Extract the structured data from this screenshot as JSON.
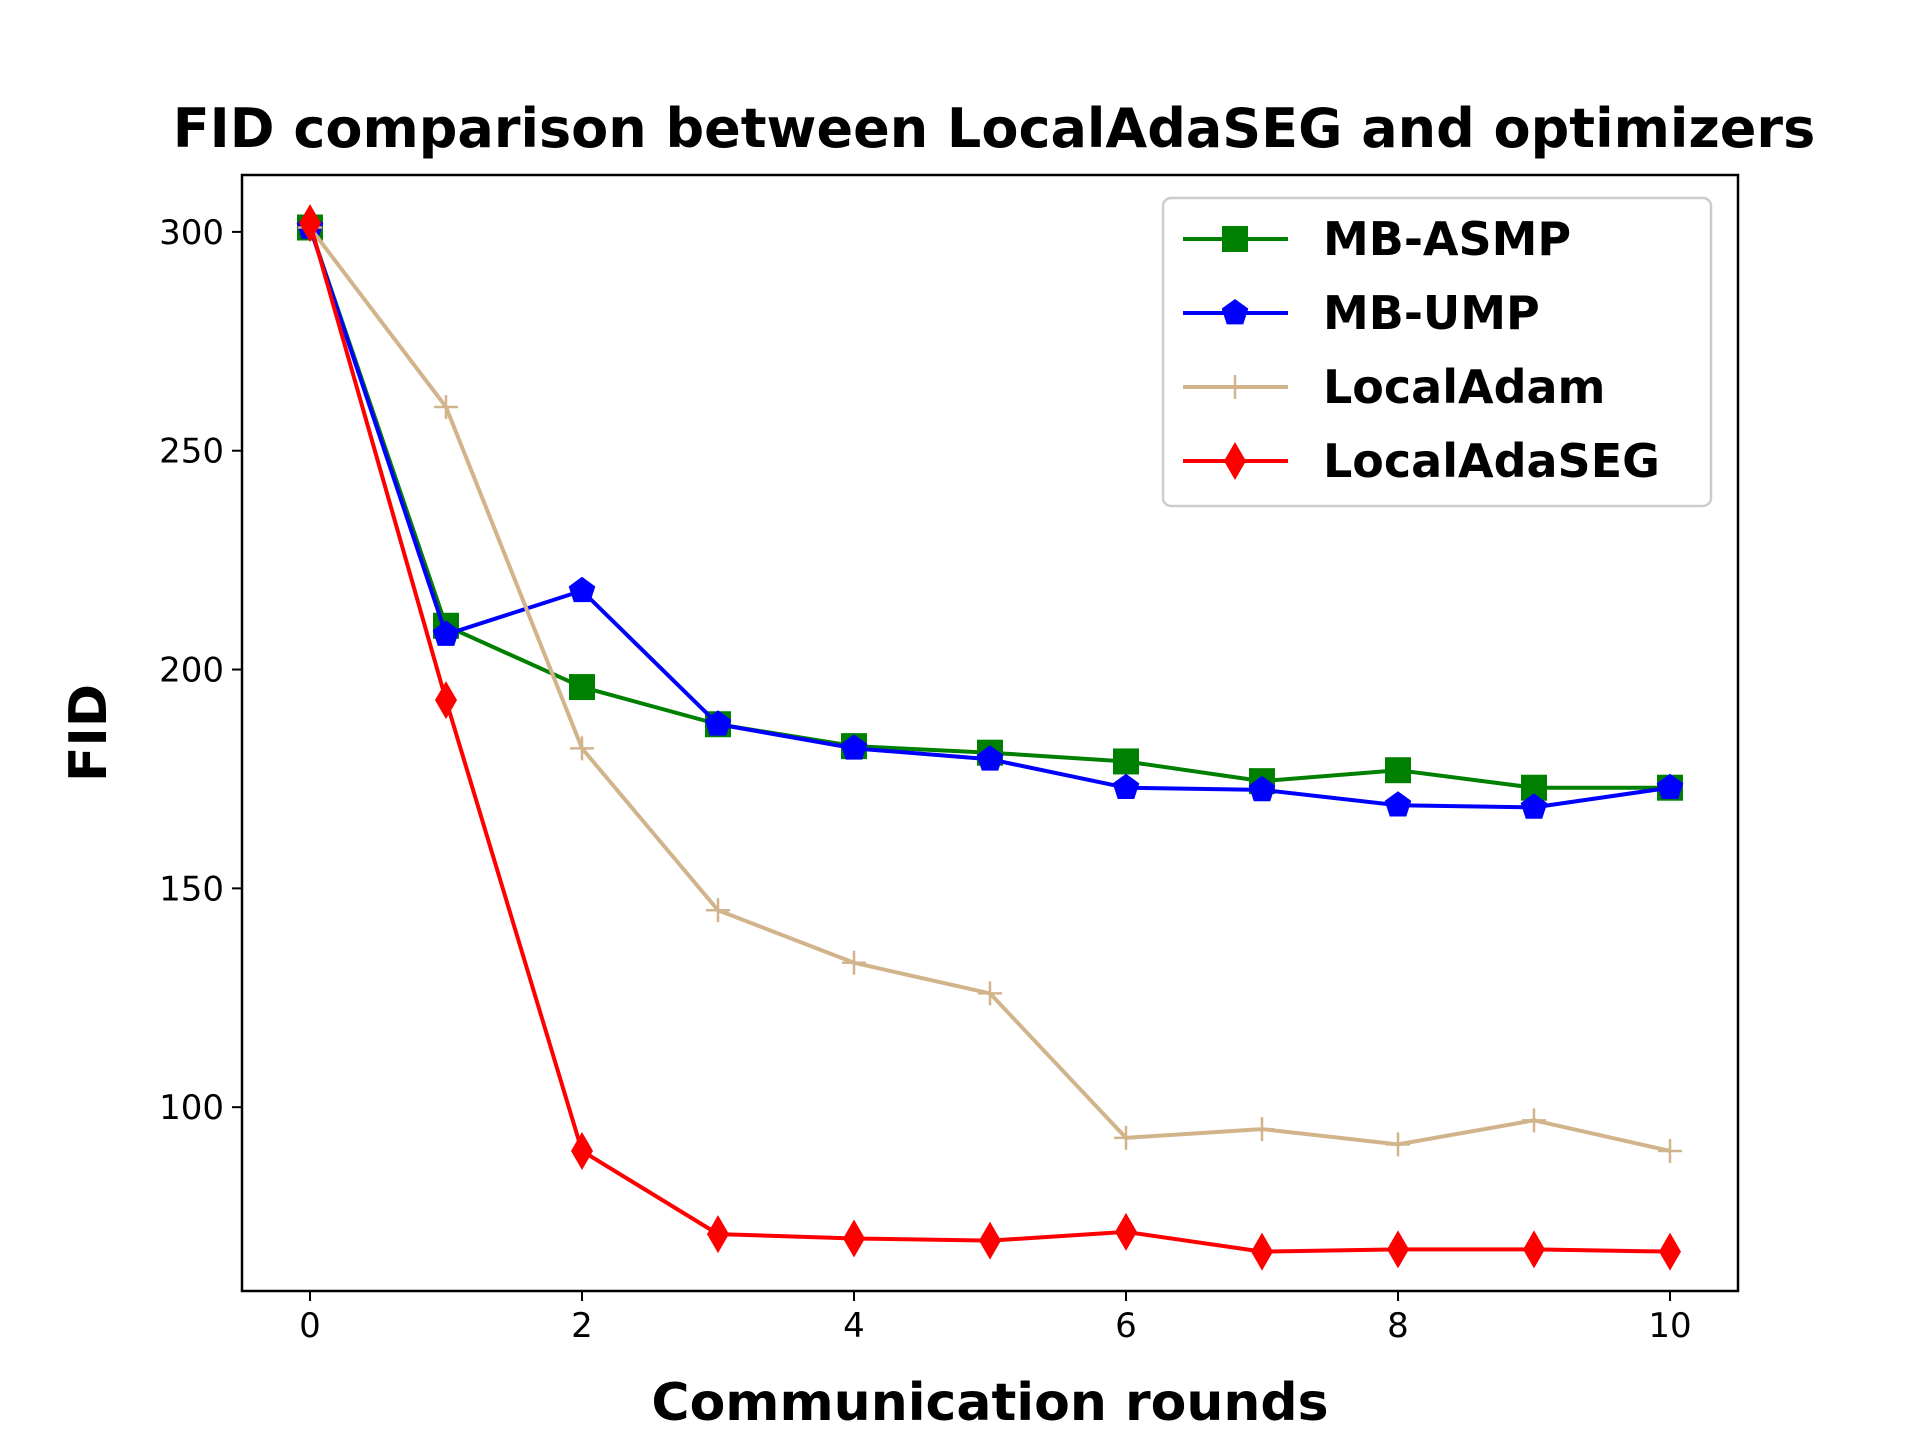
{
  "chart_data": {
    "type": "line",
    "title": "FID comparison between LocalAdaSEG and optimizers",
    "xlabel": "Communication rounds",
    "ylabel": "FID",
    "xlim": [
      -0.5,
      10.5
    ],
    "ylim": [
      58,
      313
    ],
    "xticks": [
      0,
      2,
      4,
      6,
      8,
      10
    ],
    "yticks": [
      100,
      150,
      200,
      250,
      300
    ],
    "grid": false,
    "legend_position": "top-right",
    "x": [
      0,
      1,
      2,
      3,
      4,
      5,
      6,
      7,
      8,
      9,
      10
    ],
    "series": [
      {
        "name": "MB-ASMP",
        "color": "#008000",
        "marker": "square",
        "values": [
          301,
          210,
          196,
          187.5,
          182.5,
          181,
          179,
          174.5,
          177,
          173,
          173
        ]
      },
      {
        "name": "MB-UMP",
        "color": "#0000ff",
        "marker": "pentagon",
        "values": [
          301,
          208,
          218,
          187.5,
          182,
          179.5,
          173,
          172.5,
          169,
          168.5,
          173
        ]
      },
      {
        "name": "LocalAdam",
        "color": "#d2b48c",
        "marker": "plus",
        "values": [
          301,
          260,
          182,
          145,
          133,
          126,
          93,
          95,
          91.5,
          97,
          90
        ]
      },
      {
        "name": "LocalAdaSEG",
        "color": "#ff0000",
        "marker": "diamond",
        "values": [
          302,
          193,
          90,
          71,
          70,
          69.5,
          71.5,
          67,
          67.5,
          67.5,
          67
        ]
      }
    ]
  }
}
